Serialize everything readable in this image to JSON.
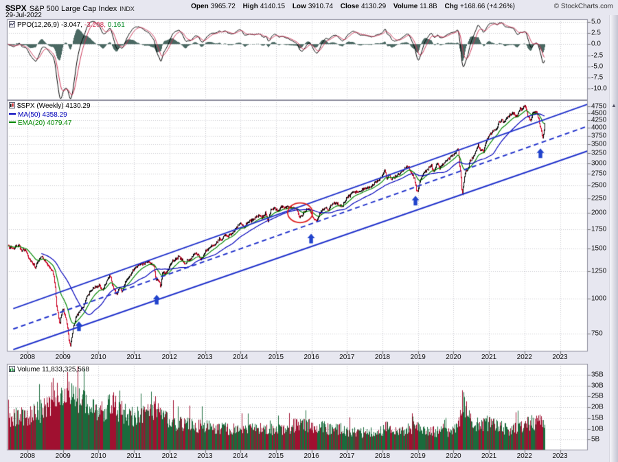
{
  "header": {
    "symbol": "$SPX",
    "name": "S&P 500 Large Cap Index",
    "exchange": "INDX",
    "date": "29-Jul-2022",
    "copyright": "© StockCharts.com",
    "quote": {
      "open_label": "Open",
      "open": "3965.72",
      "high_label": "High",
      "high": "4140.15",
      "low_label": "Low",
      "low": "3910.74",
      "close_label": "Close",
      "close": "4130.29",
      "volume_label": "Volume",
      "volume": "11.8B",
      "chg_label": "Chg",
      "chg": "+168.66 (+4.26%)"
    }
  },
  "ppo_panel": {
    "label": "PPO(12,26,9)",
    "value_main": "-3.047,",
    "value_signal": "-3.208,",
    "value_hist": "0.161",
    "yticks": [
      "5.0",
      "2.5",
      "0.0",
      "-2.5",
      "-5.0",
      "-7.5",
      "-10.0"
    ]
  },
  "price_panel": {
    "label": "$SPX (Weekly) 4130.29",
    "ma": "MA(50) 4358.29",
    "ema": "EMA(20) 4079.47",
    "yticks": [
      "750",
      "1000",
      "1250",
      "1500",
      "1750",
      "2000",
      "2250",
      "2500",
      "2750",
      "3000",
      "3250",
      "3500",
      "3750",
      "4000",
      "4250",
      "4500",
      "4750"
    ]
  },
  "volume_panel": {
    "label": "Volume 11,833,325,568",
    "yticks": [
      "5B",
      "10B",
      "15B",
      "20B",
      "25B",
      "30B",
      "35B"
    ]
  },
  "xaxis": {
    "years": [
      "2008",
      "2009",
      "2010",
      "2011",
      "2012",
      "2013",
      "2014",
      "2015",
      "2016",
      "2017",
      "2018",
      "2019",
      "2020",
      "2021",
      "2022",
      "2023"
    ]
  },
  "chart_data": {
    "type": "candlestick",
    "timeframe": "weekly",
    "title": "$SPX S&P 500 Large Cap Index (Weekly) with PPO(12,26,9) and Volume",
    "x_range": [
      2007.45,
      2022.58
    ],
    "panels": {
      "ppo": {
        "params": [
          12,
          26,
          9
        ],
        "last_values": [
          -3.047,
          -3.208,
          0.161
        ],
        "ylim": [
          -12.6,
          5.6
        ]
      },
      "price": {
        "scale": "log",
        "ylim": [
          650,
          5000
        ],
        "last_close": 4130.29,
        "ma50_last": 4358.29,
        "ema20_last": 4079.47
      },
      "volume": {
        "ylim_billions": [
          0,
          40
        ],
        "last_billions": 11.833325568
      }
    },
    "price_anchors": [
      [
        2007.45,
        1520
      ],
      [
        2007.6,
        1500
      ],
      [
        2007.75,
        1545
      ],
      [
        2007.83,
        1480
      ],
      [
        2007.95,
        1478
      ],
      [
        2008.05,
        1380
      ],
      [
        2008.15,
        1330
      ],
      [
        2008.22,
        1290
      ],
      [
        2008.35,
        1390
      ],
      [
        2008.42,
        1400
      ],
      [
        2008.55,
        1320
      ],
      [
        2008.65,
        1280
      ],
      [
        2008.72,
        1230
      ],
      [
        2008.78,
        1090
      ],
      [
        2008.82,
        930
      ],
      [
        2008.86,
        880
      ],
      [
        2008.9,
        800
      ],
      [
        2008.94,
        870
      ],
      [
        2009.0,
        920
      ],
      [
        2009.05,
        870
      ],
      [
        2009.12,
        800
      ],
      [
        2009.17,
        700
      ],
      [
        2009.2,
        683
      ],
      [
        2009.28,
        790
      ],
      [
        2009.35,
        850
      ],
      [
        2009.45,
        900
      ],
      [
        2009.55,
        930
      ],
      [
        2009.65,
        1000
      ],
      [
        2009.75,
        1060
      ],
      [
        2009.85,
        1090
      ],
      [
        2010.0,
        1115
      ],
      [
        2010.1,
        1070
      ],
      [
        2010.25,
        1180
      ],
      [
        2010.32,
        1200
      ],
      [
        2010.4,
        1090
      ],
      [
        2010.5,
        1030
      ],
      [
        2010.58,
        1100
      ],
      [
        2010.65,
        1050
      ],
      [
        2010.75,
        1150
      ],
      [
        2010.9,
        1220
      ],
      [
        2011.0,
        1280
      ],
      [
        2011.15,
        1320
      ],
      [
        2011.3,
        1330
      ],
      [
        2011.4,
        1345
      ],
      [
        2011.5,
        1320
      ],
      [
        2011.57,
        1290
      ],
      [
        2011.62,
        1150
      ],
      [
        2011.7,
        1160
      ],
      [
        2011.75,
        1100
      ],
      [
        2011.8,
        1230
      ],
      [
        2011.88,
        1220
      ],
      [
        2011.95,
        1255
      ],
      [
        2012.0,
        1300
      ],
      [
        2012.1,
        1360
      ],
      [
        2012.25,
        1400
      ],
      [
        2012.35,
        1370
      ],
      [
        2012.42,
        1310
      ],
      [
        2012.5,
        1360
      ],
      [
        2012.6,
        1380
      ],
      [
        2012.7,
        1450
      ],
      [
        2012.8,
        1420
      ],
      [
        2012.88,
        1360
      ],
      [
        2012.95,
        1420
      ],
      [
        2013.0,
        1470
      ],
      [
        2013.15,
        1520
      ],
      [
        2013.3,
        1560
      ],
      [
        2013.4,
        1630
      ],
      [
        2013.47,
        1610
      ],
      [
        2013.55,
        1680
      ],
      [
        2013.63,
        1650
      ],
      [
        2013.75,
        1700
      ],
      [
        2013.85,
        1770
      ],
      [
        2014.0,
        1840
      ],
      [
        2014.08,
        1780
      ],
      [
        2014.2,
        1870
      ],
      [
        2014.3,
        1880
      ],
      [
        2014.4,
        1920
      ],
      [
        2014.55,
        1970
      ],
      [
        2014.6,
        1920
      ],
      [
        2014.7,
        2000
      ],
      [
        2014.78,
        1880
      ],
      [
        2014.85,
        2040
      ],
      [
        2014.95,
        2080
      ],
      [
        2015.0,
        2050
      ],
      [
        2015.08,
        2060
      ],
      [
        2015.15,
        2100
      ],
      [
        2015.25,
        2090
      ],
      [
        2015.35,
        2110
      ],
      [
        2015.45,
        2100
      ],
      [
        2015.55,
        2080
      ],
      [
        2015.62,
        1990
      ],
      [
        2015.65,
        1920
      ],
      [
        2015.72,
        1960
      ],
      [
        2015.8,
        2020
      ],
      [
        2015.87,
        2090
      ],
      [
        2015.95,
        2050
      ],
      [
        2016.0,
        1990
      ],
      [
        2016.05,
        1890
      ],
      [
        2016.1,
        1870
      ],
      [
        2016.13,
        1880
      ],
      [
        2016.22,
        1990
      ],
      [
        2016.3,
        2060
      ],
      [
        2016.4,
        2090
      ],
      [
        2016.47,
        2040
      ],
      [
        2016.5,
        2100
      ],
      [
        2016.6,
        2170
      ],
      [
        2016.7,
        2170
      ],
      [
        2016.8,
        2130
      ],
      [
        2016.85,
        2090
      ],
      [
        2016.92,
        2200
      ],
      [
        2017.0,
        2270
      ],
      [
        2017.15,
        2360
      ],
      [
        2017.3,
        2380
      ],
      [
        2017.45,
        2430
      ],
      [
        2017.6,
        2470
      ],
      [
        2017.7,
        2500
      ],
      [
        2017.85,
        2580
      ],
      [
        2018.0,
        2700
      ],
      [
        2018.07,
        2870
      ],
      [
        2018.12,
        2620
      ],
      [
        2018.18,
        2730
      ],
      [
        2018.25,
        2640
      ],
      [
        2018.33,
        2670
      ],
      [
        2018.45,
        2730
      ],
      [
        2018.55,
        2800
      ],
      [
        2018.65,
        2900
      ],
      [
        2018.72,
        2930
      ],
      [
        2018.8,
        2760
      ],
      [
        2018.85,
        2730
      ],
      [
        2018.9,
        2630
      ],
      [
        2018.95,
        2420
      ],
      [
        2018.98,
        2380
      ],
      [
        2019.03,
        2530
      ],
      [
        2019.1,
        2700
      ],
      [
        2019.2,
        2800
      ],
      [
        2019.3,
        2890
      ],
      [
        2019.38,
        2940
      ],
      [
        2019.42,
        2780
      ],
      [
        2019.5,
        2950
      ],
      [
        2019.55,
        3010
      ],
      [
        2019.6,
        2870
      ],
      [
        2019.65,
        2920
      ],
      [
        2019.72,
        2980
      ],
      [
        2019.8,
        3070
      ],
      [
        2019.9,
        3140
      ],
      [
        2020.0,
        3230
      ],
      [
        2020.08,
        3330
      ],
      [
        2020.12,
        3380
      ],
      [
        2020.16,
        2950
      ],
      [
        2020.2,
        2650
      ],
      [
        2020.23,
        2300
      ],
      [
        2020.27,
        2550
      ],
      [
        2020.32,
        2800
      ],
      [
        2020.4,
        2880
      ],
      [
        2020.45,
        3050
      ],
      [
        2020.52,
        3130
      ],
      [
        2020.6,
        3270
      ],
      [
        2020.68,
        3480
      ],
      [
        2020.73,
        3340
      ],
      [
        2020.78,
        3360
      ],
      [
        2020.83,
        3270
      ],
      [
        2020.88,
        3510
      ],
      [
        2020.95,
        3690
      ],
      [
        2021.0,
        3760
      ],
      [
        2021.07,
        3810
      ],
      [
        2021.12,
        3900
      ],
      [
        2021.2,
        3940
      ],
      [
        2021.28,
        4180
      ],
      [
        2021.35,
        4230
      ],
      [
        2021.42,
        4200
      ],
      [
        2021.5,
        4350
      ],
      [
        2021.58,
        4440
      ],
      [
        2021.65,
        4470
      ],
      [
        2021.7,
        4540
      ],
      [
        2021.75,
        4350
      ],
      [
        2021.8,
        4400
      ],
      [
        2021.88,
        4700
      ],
      [
        2021.92,
        4600
      ],
      [
        2021.97,
        4770
      ],
      [
        2022.0,
        4790
      ],
      [
        2022.05,
        4660
      ],
      [
        2022.08,
        4400
      ],
      [
        2022.13,
        4350
      ],
      [
        2022.17,
        4200
      ],
      [
        2022.22,
        4460
      ],
      [
        2022.27,
        4550
      ],
      [
        2022.32,
        4540
      ],
      [
        2022.37,
        4390
      ],
      [
        2022.42,
        4130
      ],
      [
        2022.47,
        3900
      ],
      [
        2022.5,
        3670
      ],
      [
        2022.53,
        3790
      ],
      [
        2022.55,
        3960
      ],
      [
        2022.58,
        4130.29
      ]
    ],
    "volume_anchors_billions": [
      [
        2007.45,
        15
      ],
      [
        2008.0,
        16
      ],
      [
        2008.7,
        20
      ],
      [
        2008.85,
        26
      ],
      [
        2009.0,
        24
      ],
      [
        2009.2,
        26
      ],
      [
        2009.5,
        22
      ],
      [
        2009.8,
        20
      ],
      [
        2010.0,
        17
      ],
      [
        2010.4,
        21
      ],
      [
        2010.6,
        18
      ],
      [
        2011.0,
        15
      ],
      [
        2011.6,
        20
      ],
      [
        2011.8,
        17
      ],
      [
        2012.0,
        13
      ],
      [
        2012.5,
        12
      ],
      [
        2013.0,
        11
      ],
      [
        2013.5,
        10
      ],
      [
        2014.0,
        9.5
      ],
      [
        2014.78,
        10
      ],
      [
        2015.0,
        9
      ],
      [
        2015.65,
        12
      ],
      [
        2016.0,
        11
      ],
      [
        2016.1,
        12
      ],
      [
        2016.5,
        9.5
      ],
      [
        2016.92,
        10
      ],
      [
        2017.0,
        8.5
      ],
      [
        2017.5,
        8
      ],
      [
        2018.0,
        9
      ],
      [
        2018.07,
        12
      ],
      [
        2018.5,
        8.5
      ],
      [
        2018.95,
        11
      ],
      [
        2019.0,
        10
      ],
      [
        2019.5,
        8.5
      ],
      [
        2020.0,
        9
      ],
      [
        2020.16,
        14
      ],
      [
        2020.23,
        24
      ],
      [
        2020.35,
        18
      ],
      [
        2020.5,
        12
      ],
      [
        2020.88,
        12
      ],
      [
        2021.0,
        13
      ],
      [
        2021.3,
        11
      ],
      [
        2021.5,
        9.5
      ],
      [
        2021.8,
        10
      ],
      [
        2022.0,
        11.5
      ],
      [
        2022.2,
        13
      ],
      [
        2022.42,
        13
      ],
      [
        2022.58,
        11.8
      ]
    ],
    "annotations": {
      "channel": {
        "upper": [
          [
            2007.6,
            920
          ],
          [
            2023.9,
            4900
          ]
        ],
        "middle_dashed": [
          [
            2007.6,
            780
          ],
          [
            2023.9,
            4100
          ]
        ],
        "lower": [
          [
            2007.6,
            660
          ],
          [
            2023.9,
            3350
          ]
        ]
      },
      "arrows": [
        [
          2009.45,
          830
        ],
        [
          2011.64,
          1030
        ],
        [
          2015.99,
          1690
        ],
        [
          2018.93,
          2300
        ],
        [
          2022.45,
          3380
        ]
      ],
      "ellipse": {
        "t": 2015.68,
        "price": 2005,
        "rt": 0.35,
        "rlog": 0.08
      }
    },
    "colors": {
      "page_bg": "#e7e7f0",
      "panel_bg": "#ffffff",
      "panel_border": "#8a8a9a",
      "grid": "#c9c9cf",
      "up_candle": "#000000",
      "down_candle": "#cc0022",
      "ma50": "#0000bb",
      "ema20": "#008800",
      "channel": "#2233cc",
      "arrow": "#2244cc",
      "ellipse": "#dd2222",
      "ppo_line": "#000000",
      "ppo_signal": "#cc3355",
      "ppo_hist": "#4a6862",
      "legend_hist_green": "#008822",
      "vol_up": "#1a6b3c",
      "vol_down": "#a01030"
    }
  }
}
